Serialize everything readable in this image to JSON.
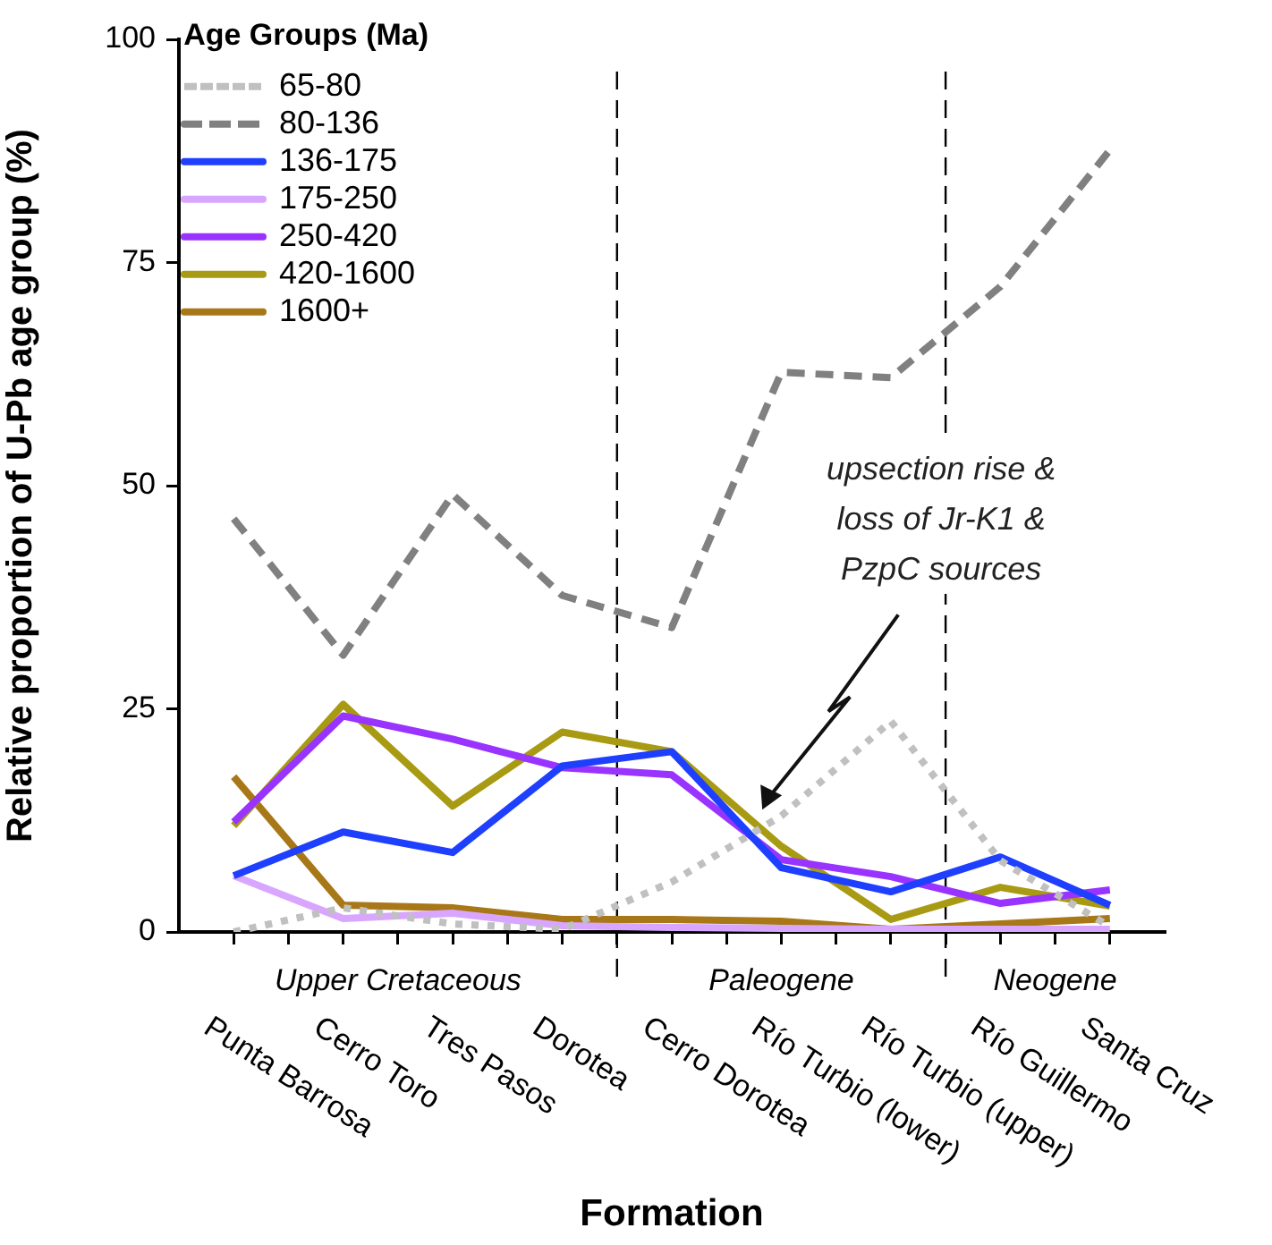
{
  "chart_data": {
    "type": "line",
    "xlabel": "Formation",
    "ylabel": "Relative proportion of U-Pb age group (%)",
    "legend_title": "Age Groups (Ma)",
    "categories": [
      "Punta Barrosa",
      "Cerro Toro",
      "Tres Pasos",
      "Dorotea",
      "Cerro Dorotea",
      "Río Turbio (lower)",
      "Río Turbio (upper)",
      "Río Guillermo",
      "Santa Cruz"
    ],
    "ylim": [
      0,
      100
    ],
    "yticks": [
      0,
      25,
      50,
      75,
      100
    ],
    "series": [
      {
        "name": "65-80",
        "color": "#c0c0c0",
        "line_style": "dotted",
        "values": [
          0,
          2.7,
          0.9,
          0.3,
          5.6,
          13,
          23.6,
          8,
          0.6
        ]
      },
      {
        "name": "80-136",
        "color": "#808080",
        "line_style": "dashed",
        "values": [
          46.3,
          31,
          49,
          37.7,
          34.1,
          62.7,
          62.1,
          72.3,
          87.6
        ]
      },
      {
        "name": "136-175",
        "color": "#1f3fff",
        "line_style": "solid",
        "values": [
          6.3,
          11.2,
          8.9,
          18.6,
          20.2,
          7.2,
          4.5,
          8.4,
          3
        ]
      },
      {
        "name": "175-250",
        "color": "#d9a6ff",
        "line_style": "solid",
        "values": [
          6.3,
          1.5,
          2.1,
          0.7,
          0.5,
          0.4,
          0.3,
          0.3,
          0.3
        ]
      },
      {
        "name": "250-420",
        "color": "#9933ff",
        "line_style": "solid",
        "values": [
          12.3,
          24.2,
          21.6,
          18.4,
          17.6,
          8.1,
          6.2,
          3.2,
          4.7
        ]
      },
      {
        "name": "420-1600",
        "color": "#a89a12",
        "line_style": "solid",
        "values": [
          11.9,
          25.5,
          14.1,
          22.4,
          20.2,
          9.6,
          1.4,
          5,
          2.9
        ]
      },
      {
        "name": "1600+",
        "color": "#a87818",
        "line_style": "solid",
        "values": [
          17.4,
          3,
          2.7,
          1.4,
          1.4,
          1.2,
          0.3,
          0.9,
          1.5
        ]
      }
    ],
    "annotations": [
      "Upper Cretaceous",
      "Paleogene",
      "Neogene",
      "upsection rise & loss of Jr-K1 & PzpC sources"
    ],
    "grid": false,
    "legend": "top left",
    "marker": "none"
  }
}
